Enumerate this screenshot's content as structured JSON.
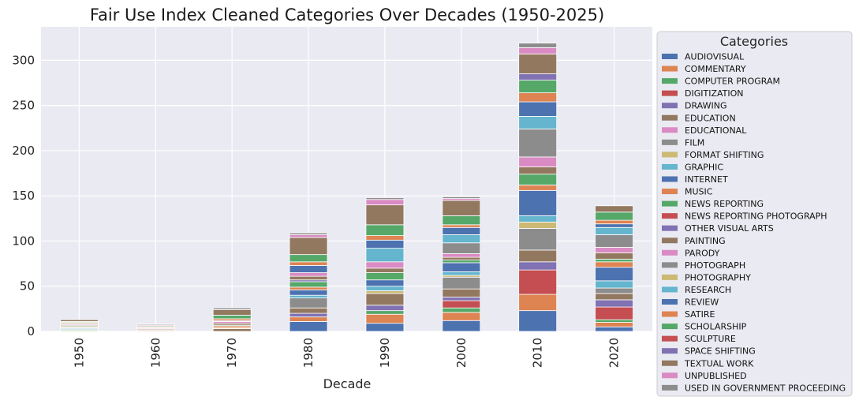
{
  "chart_data": {
    "type": "bar",
    "stacked": true,
    "title": "Fair Use Index Cleaned Categories Over Decades (1950-2025)",
    "xlabel": "Decade",
    "ylabel": "",
    "categories": [
      "1950",
      "1960",
      "1970",
      "1980",
      "1990",
      "2000",
      "2010",
      "2020"
    ],
    "ylim": [
      0,
      337
    ],
    "yticks": [
      0,
      50,
      100,
      150,
      200,
      250,
      300
    ],
    "grid": true,
    "legend": {
      "title": "Categories",
      "placement": "right-outside"
    },
    "series": [
      {
        "name": "AUDIOVISUAL",
        "color": "#4c72b0",
        "values": [
          0,
          0,
          0,
          11,
          9,
          12,
          23,
          5
        ]
      },
      {
        "name": "COMMENTARY",
        "color": "#dd8452",
        "values": [
          0,
          0,
          0,
          5,
          10,
          9,
          18,
          5
        ]
      },
      {
        "name": "COMPUTER PROGRAM",
        "color": "#55a868",
        "values": [
          1,
          0,
          0,
          0,
          4,
          5,
          0,
          3
        ]
      },
      {
        "name": "DIGITIZATION",
        "color": "#c44e52",
        "values": [
          0,
          0,
          0,
          0,
          0,
          8,
          27,
          14
        ]
      },
      {
        "name": "DRAWING",
        "color": "#8172b3",
        "values": [
          0,
          0,
          0,
          4,
          6,
          4,
          9,
          8
        ]
      },
      {
        "name": "EDUCATION",
        "color": "#937860",
        "values": [
          0,
          0,
          3,
          6,
          13,
          9,
          13,
          7
        ]
      },
      {
        "name": "EDUCATIONAL",
        "color": "#da8bc3",
        "values": [
          0,
          1,
          0,
          0,
          0,
          0,
          0,
          0
        ]
      },
      {
        "name": "FILM",
        "color": "#8c8c8c",
        "values": [
          0,
          0,
          0,
          11,
          0,
          13,
          24,
          6
        ]
      },
      {
        "name": "FORMAT SHIFTING",
        "color": "#ccb974",
        "values": [
          1,
          1,
          1,
          0,
          3,
          2,
          7,
          0
        ]
      },
      {
        "name": "GRAPHIC",
        "color": "#64b5cd",
        "values": [
          1,
          0,
          0,
          3,
          5,
          4,
          7,
          8
        ]
      },
      {
        "name": "INTERNET",
        "color": "#4c72b0",
        "values": [
          1,
          0,
          0,
          6,
          7,
          10,
          28,
          15
        ]
      },
      {
        "name": "MUSIC",
        "color": "#dd8452",
        "values": [
          1,
          0,
          2,
          3,
          0,
          0,
          6,
          6
        ]
      },
      {
        "name": "NEWS REPORTING",
        "color": "#55a868",
        "values": [
          1,
          0,
          1,
          6,
          8,
          3,
          12,
          3
        ]
      },
      {
        "name": "NEWS REPORTING PHOTOGRAPH",
        "color": "#c44e52",
        "values": [
          0,
          0,
          0,
          0,
          0,
          0,
          0,
          0
        ]
      },
      {
        "name": "OTHER VISUAL ARTS",
        "color": "#8172b3",
        "values": [
          0,
          0,
          0,
          2,
          0,
          0,
          0,
          0
        ]
      },
      {
        "name": "PAINTING",
        "color": "#937860",
        "values": [
          1,
          1,
          2,
          4,
          5,
          3,
          8,
          7
        ]
      },
      {
        "name": "PARODY",
        "color": "#da8bc3",
        "values": [
          1,
          1,
          2,
          4,
          7,
          4,
          11,
          6
        ]
      },
      {
        "name": "PHOTOGRAPH",
        "color": "#8c8c8c",
        "values": [
          1,
          0,
          1,
          0,
          0,
          12,
          31,
          14
        ]
      },
      {
        "name": "PHOTOGRAPHY",
        "color": "#ccb974",
        "values": [
          0,
          0,
          0,
          0,
          0,
          0,
          0,
          0
        ]
      },
      {
        "name": "RESEARCH",
        "color": "#64b5cd",
        "values": [
          0,
          0,
          0,
          0,
          15,
          9,
          14,
          8
        ]
      },
      {
        "name": "REVIEW",
        "color": "#4c72b0",
        "values": [
          0,
          0,
          0,
          8,
          9,
          8,
          16,
          4
        ]
      },
      {
        "name": "SATIRE",
        "color": "#dd8452",
        "values": [
          1,
          1,
          2,
          4,
          5,
          3,
          10,
          4
        ]
      },
      {
        "name": "SCHOLARSHIP",
        "color": "#55a868",
        "values": [
          1,
          1,
          4,
          8,
          12,
          10,
          14,
          9
        ]
      },
      {
        "name": "SCULPTURE",
        "color": "#c44e52",
        "values": [
          0,
          0,
          0,
          0,
          0,
          0,
          0,
          0
        ]
      },
      {
        "name": "SPACE SHIFTING",
        "color": "#8172b3",
        "values": [
          0,
          0,
          0,
          0,
          0,
          0,
          7,
          0
        ]
      },
      {
        "name": "TEXTUAL WORK",
        "color": "#937860",
        "values": [
          2,
          0,
          6,
          19,
          22,
          17,
          22,
          7
        ]
      },
      {
        "name": "UNPUBLISHED",
        "color": "#da8bc3",
        "values": [
          0,
          1,
          0,
          3,
          6,
          2,
          7,
          0
        ]
      },
      {
        "name": "USED IN GOVERNMENT PROCEEDING",
        "color": "#8c8c8c",
        "values": [
          0,
          1,
          2,
          2,
          2,
          2,
          5,
          0
        ]
      }
    ]
  }
}
